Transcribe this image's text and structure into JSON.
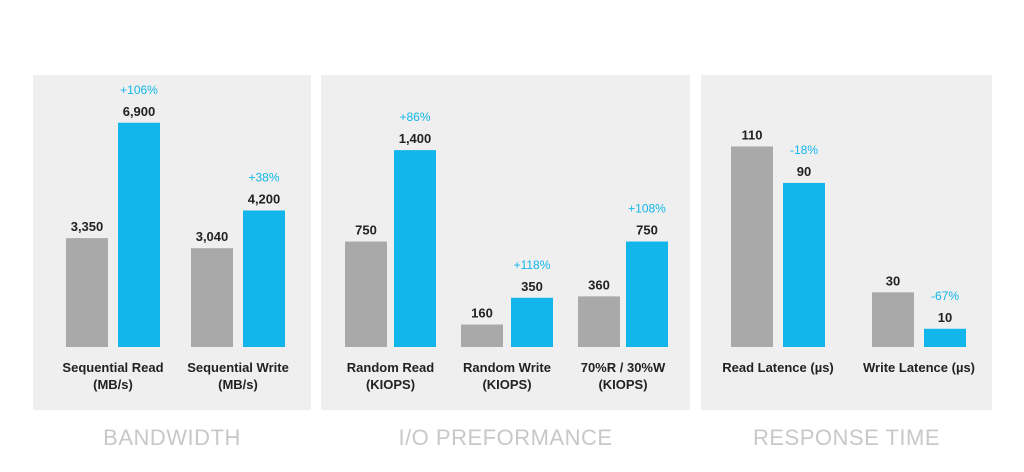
{
  "colors": {
    "before": "#a9a9aa",
    "after": "#12b6ea",
    "panel_bg": "#efefef",
    "title": "#c8c8c8"
  },
  "chart_data": [
    {
      "type": "bar",
      "title": "BANDWIDTH",
      "categories": [
        [
          "Sequential Read",
          "(MB/s)"
        ],
        [
          "Sequential Write",
          "(MB/s)"
        ]
      ],
      "series": [
        {
          "values": [
            3350,
            3040
          ]
        },
        {
          "values": [
            6900,
            4200
          ]
        }
      ],
      "value_labels": [
        [
          "3,350",
          "3,040"
        ],
        [
          "6,900",
          "4,200"
        ]
      ],
      "change_labels": [
        "+106%",
        "+38%"
      ],
      "ylim": [
        0,
        8000
      ]
    },
    {
      "type": "bar",
      "title": "I/O PREFORMANCE",
      "categories": [
        [
          "Random Read",
          "(KIOPS)"
        ],
        [
          "Random Write",
          "(KIOPS)"
        ],
        [
          "70%R / 30%W",
          "(KIOPS)"
        ]
      ],
      "series": [
        {
          "values": [
            750,
            160,
            360
          ]
        },
        {
          "values": [
            1400,
            350,
            750
          ]
        }
      ],
      "value_labels": [
        [
          "750",
          "160",
          "360"
        ],
        [
          "1,400",
          "350",
          "750"
        ]
      ],
      "change_labels": [
        "+86%",
        "+118%",
        "+108%"
      ],
      "ylim": [
        0,
        1600
      ]
    },
    {
      "type": "bar",
      "title": "RESPONSE TIME",
      "categories": [
        [
          "Read Latence (µs)"
        ],
        [
          "Write Latence (µs)"
        ]
      ],
      "series": [
        {
          "values": [
            110,
            30
          ]
        },
        {
          "values": [
            90,
            10
          ]
        }
      ],
      "value_labels": [
        [
          "110",
          "30"
        ],
        [
          "90",
          "10"
        ]
      ],
      "change_labels": [
        "-18%",
        "-67%"
      ],
      "ylim": [
        0,
        130
      ]
    }
  ]
}
